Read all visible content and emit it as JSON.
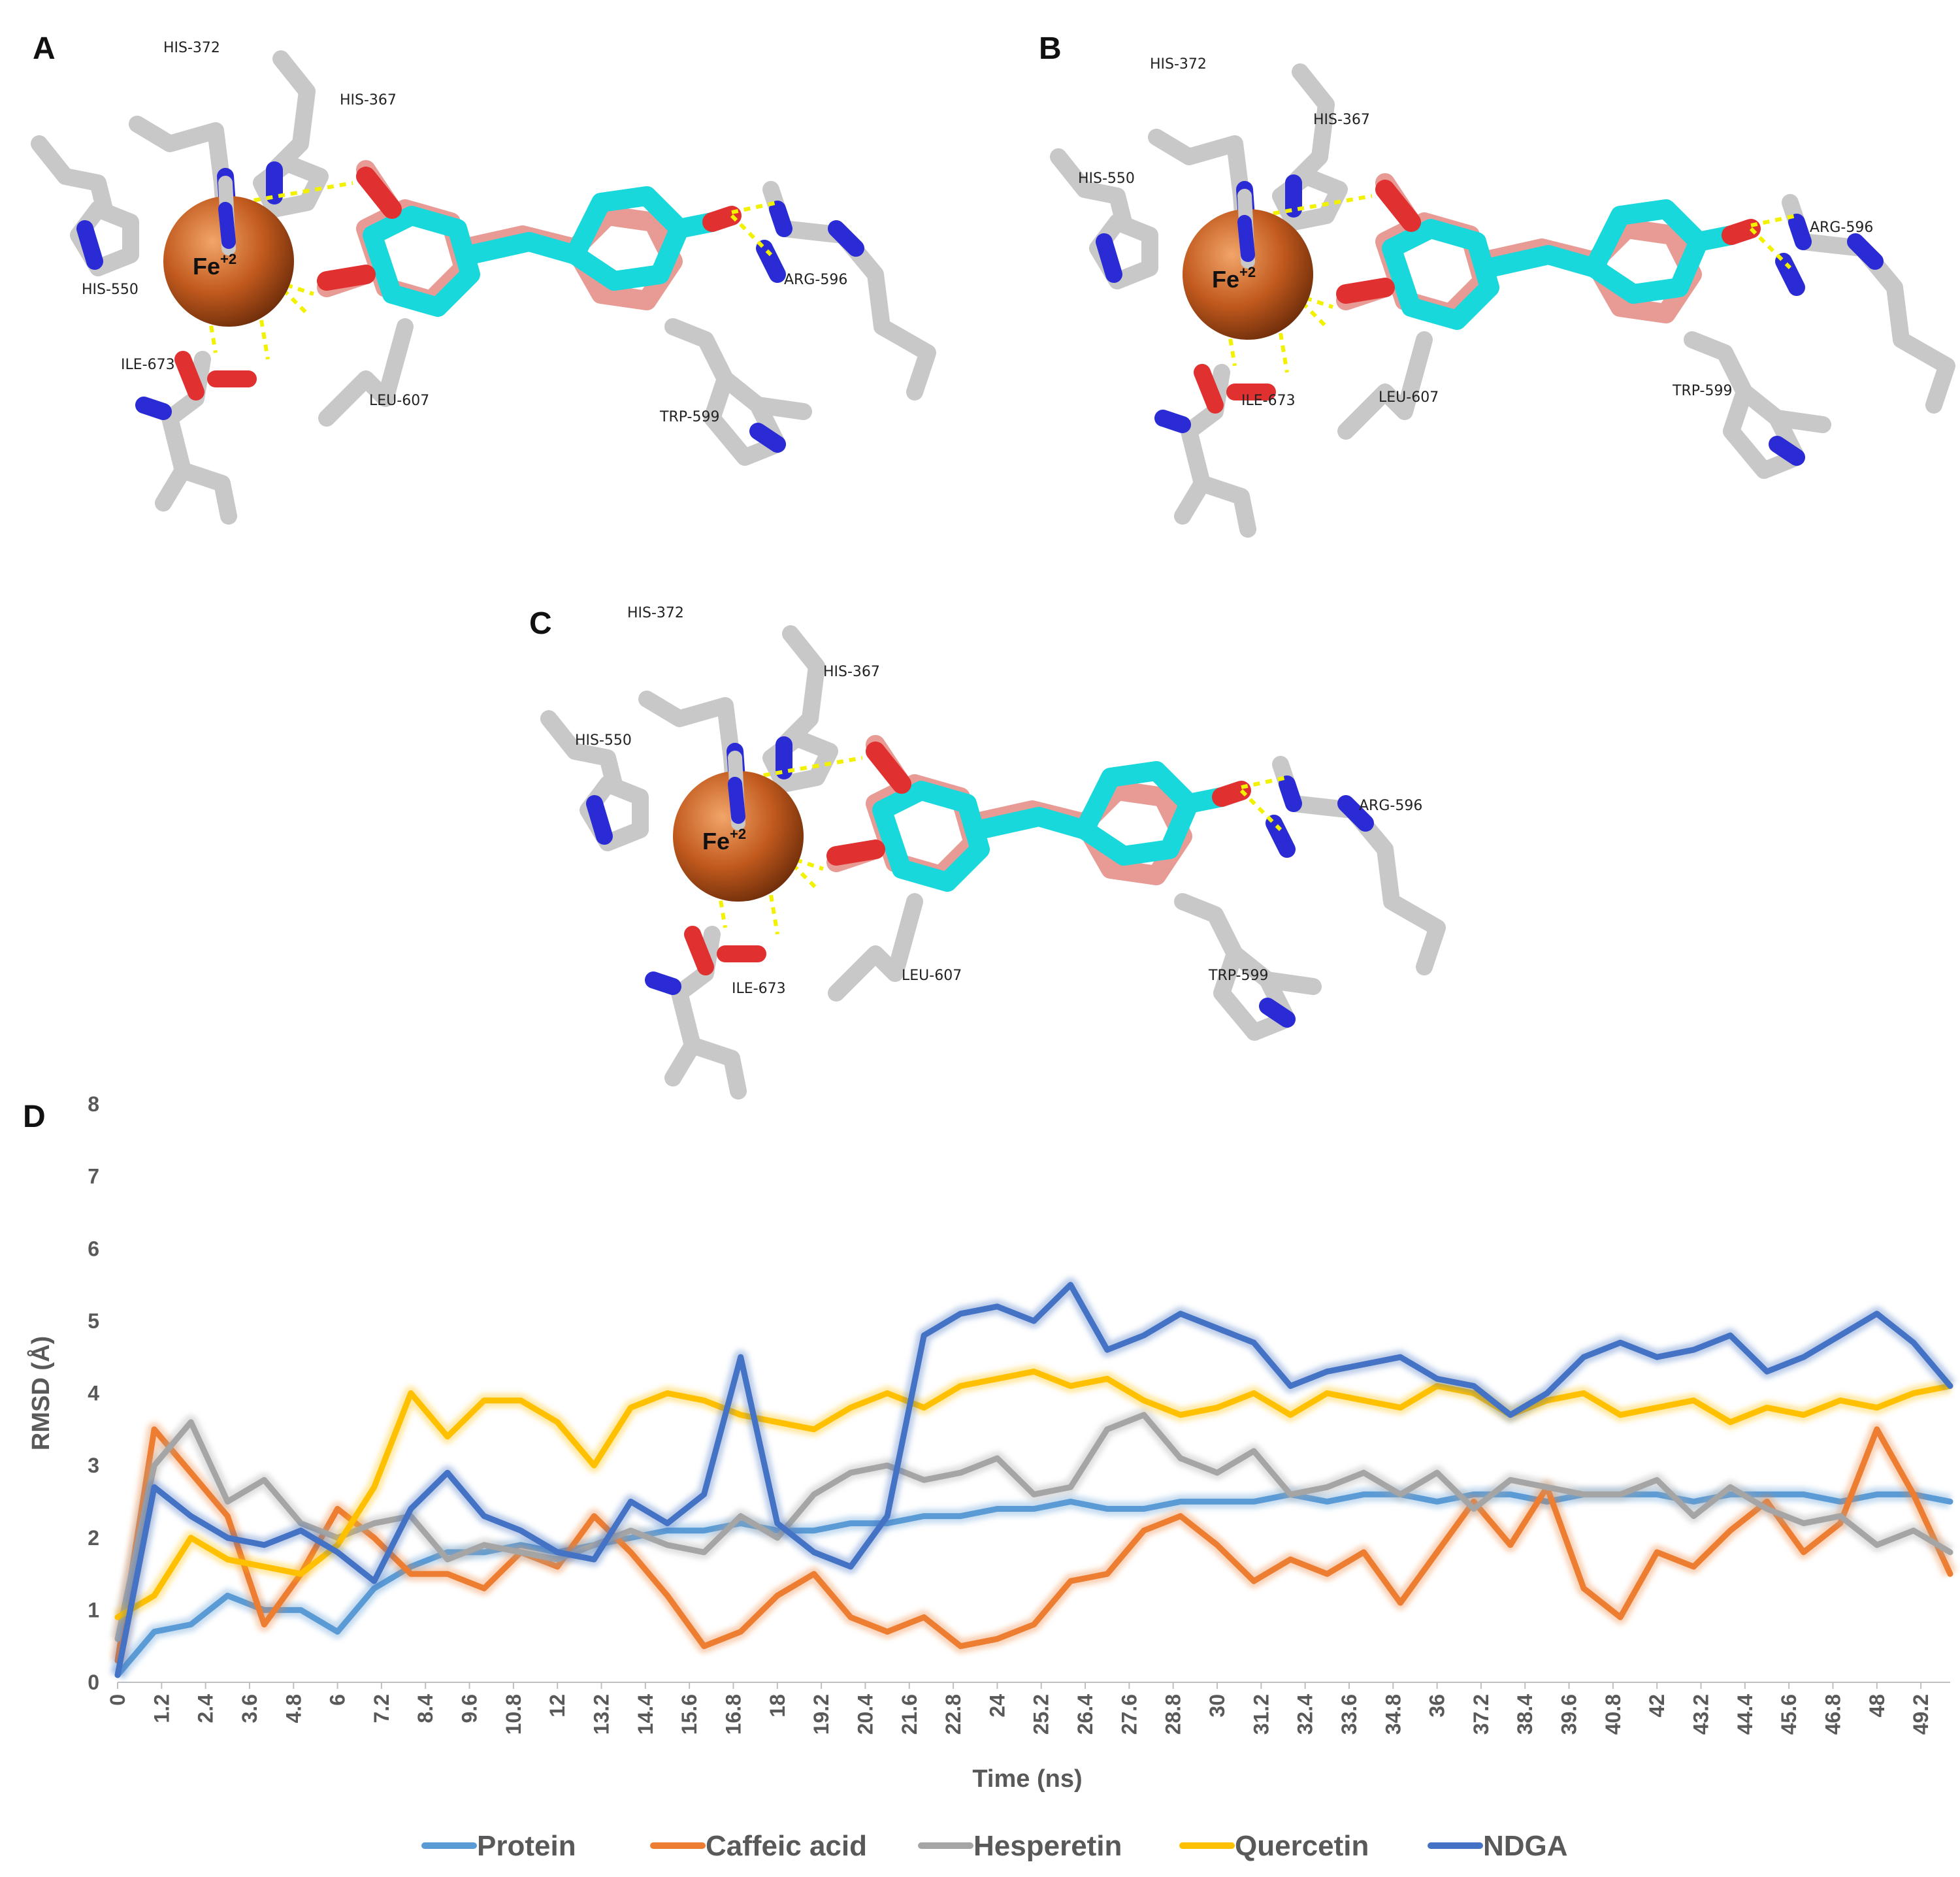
{
  "panels": [
    {
      "letter": "A",
      "fe_label": "Fe",
      "fe_charge": "+2",
      "residues": [
        "HIS-372",
        "HIS-367",
        "HIS-550",
        "ARG-596",
        "ILE-673",
        "LEU-607",
        "TRP-599"
      ]
    },
    {
      "letter": "B",
      "fe_label": "Fe",
      "fe_charge": "+2",
      "residues": [
        "HIS-372",
        "HIS-367",
        "HIS-550",
        "ARG-596",
        "ILE-673",
        "LEU-607",
        "TRP-599"
      ]
    },
    {
      "letter": "C",
      "fe_label": "Fe",
      "fe_charge": "+2",
      "residues": [
        "HIS-372",
        "HIS-367",
        "HIS-550",
        "ARG-596",
        "ILE-673",
        "LEU-607",
        "TRP-599"
      ]
    }
  ],
  "colors": {
    "carbon_protein": "#d0d0d0",
    "nitrogen": "#2b2bd6",
    "oxygen": "#e03030",
    "ligand_cyan": "#19d8dc",
    "ligand_salmon": "#e89a94",
    "iron": "#c25a1e",
    "hbond": "#f2f200"
  },
  "chart_data": {
    "panel_letter": "D",
    "type": "line",
    "xlabel": "Time (ns)",
    "ylabel": "RMSD (Å)",
    "ylim": [
      0,
      8
    ],
    "yticks": [
      "0",
      "1",
      "2",
      "3",
      "4",
      "5",
      "6",
      "7",
      "8"
    ],
    "xlim": [
      0,
      50
    ],
    "xticks": [
      "0",
      "1.2",
      "2.4",
      "3.6",
      "4.8",
      "6",
      "7.2",
      "8.4",
      "9.6",
      "10.8",
      "12",
      "13.2",
      "14.4",
      "15.6",
      "16.8",
      "18",
      "19.2",
      "20.4",
      "21.6",
      "22.8",
      "24",
      "25.2",
      "26.4",
      "27.6",
      "28.8",
      "30",
      "31.2",
      "32.4",
      "33.6",
      "34.8",
      "36",
      "37.2",
      "38.4",
      "39.6",
      "40.8",
      "42",
      "43.2",
      "44.4",
      "45.6",
      "46.8",
      "48",
      "49.2"
    ],
    "grid": false,
    "legend_position": "bottom",
    "x": [
      0,
      1,
      2,
      3,
      4,
      5,
      6,
      7,
      8,
      9,
      10,
      11,
      12,
      13,
      14,
      15,
      16,
      17,
      18,
      19,
      20,
      21,
      22,
      23,
      24,
      25,
      26,
      27,
      28,
      29,
      30,
      31,
      32,
      33,
      34,
      35,
      36,
      37,
      38,
      39,
      40,
      41,
      42,
      43,
      44,
      45,
      46,
      47,
      48,
      49,
      50
    ],
    "series": [
      {
        "name": "Protein",
        "color": "#5b9bd5",
        "values": [
          0.1,
          0.7,
          0.8,
          1.2,
          1.0,
          1.0,
          0.7,
          1.3,
          1.6,
          1.8,
          1.8,
          1.9,
          1.8,
          1.9,
          2.0,
          2.1,
          2.1,
          2.2,
          2.1,
          2.1,
          2.2,
          2.2,
          2.3,
          2.3,
          2.4,
          2.4,
          2.5,
          2.4,
          2.4,
          2.5,
          2.5,
          2.5,
          2.6,
          2.5,
          2.6,
          2.6,
          2.5,
          2.6,
          2.6,
          2.5,
          2.6,
          2.6,
          2.6,
          2.5,
          2.6,
          2.6,
          2.6,
          2.5,
          2.6,
          2.6,
          2.5
        ]
      },
      {
        "name": "Caffeic acid",
        "color": "#ed7d31",
        "values": [
          0.3,
          3.5,
          2.9,
          2.3,
          0.8,
          1.5,
          2.4,
          2.0,
          1.5,
          1.5,
          1.3,
          1.8,
          1.6,
          2.3,
          1.8,
          1.2,
          0.5,
          0.7,
          1.2,
          1.5,
          0.9,
          0.7,
          0.9,
          0.5,
          0.6,
          0.8,
          1.4,
          1.5,
          2.1,
          2.3,
          1.9,
          1.4,
          1.7,
          1.5,
          1.8,
          1.1,
          1.8,
          2.5,
          1.9,
          2.7,
          1.3,
          0.9,
          1.8,
          1.6,
          2.1,
          2.5,
          1.8,
          2.2,
          3.5,
          2.6,
          1.5
        ]
      },
      {
        "name": "Hesperetin",
        "color": "#a5a5a5",
        "values": [
          0.6,
          3.0,
          3.6,
          2.5,
          2.8,
          2.2,
          2.0,
          2.2,
          2.3,
          1.7,
          1.9,
          1.8,
          1.7,
          1.9,
          2.1,
          1.9,
          1.8,
          2.3,
          2.0,
          2.6,
          2.9,
          3.0,
          2.8,
          2.9,
          3.1,
          2.6,
          2.7,
          3.5,
          3.7,
          3.1,
          2.9,
          3.2,
          2.6,
          2.7,
          2.9,
          2.6,
          2.9,
          2.4,
          2.8,
          2.7,
          2.6,
          2.6,
          2.8,
          2.3,
          2.7,
          2.4,
          2.2,
          2.3,
          1.9,
          2.1,
          1.8
        ]
      },
      {
        "name": "Quercetin",
        "color": "#ffc000",
        "values": [
          0.9,
          1.2,
          2.0,
          1.7,
          1.6,
          1.5,
          1.9,
          2.7,
          4.0,
          3.4,
          3.9,
          3.9,
          3.6,
          3.0,
          3.8,
          4.0,
          3.9,
          3.7,
          3.6,
          3.5,
          3.8,
          4.0,
          3.8,
          4.1,
          4.2,
          4.3,
          4.1,
          4.2,
          3.9,
          3.7,
          3.8,
          4.0,
          3.7,
          4.0,
          3.9,
          3.8,
          4.1,
          4.0,
          3.7,
          3.9,
          4.0,
          3.7,
          3.8,
          3.9,
          3.6,
          3.8,
          3.7,
          3.9,
          3.8,
          4.0,
          4.1
        ]
      },
      {
        "name": "NDGA",
        "color": "#4472c4",
        "values": [
          0.1,
          2.7,
          2.3,
          2.0,
          1.9,
          2.1,
          1.8,
          1.4,
          2.4,
          2.9,
          2.3,
          2.1,
          1.8,
          1.7,
          2.5,
          2.2,
          2.6,
          4.5,
          2.2,
          1.8,
          1.6,
          2.3,
          4.8,
          5.1,
          5.2,
          5.0,
          5.5,
          4.6,
          4.8,
          5.1,
          4.9,
          4.7,
          4.1,
          4.3,
          4.4,
          4.5,
          4.2,
          4.1,
          3.7,
          4.0,
          4.5,
          4.7,
          4.5,
          4.6,
          4.8,
          4.3,
          4.5,
          4.8,
          5.1,
          4.7,
          4.1
        ]
      }
    ]
  }
}
